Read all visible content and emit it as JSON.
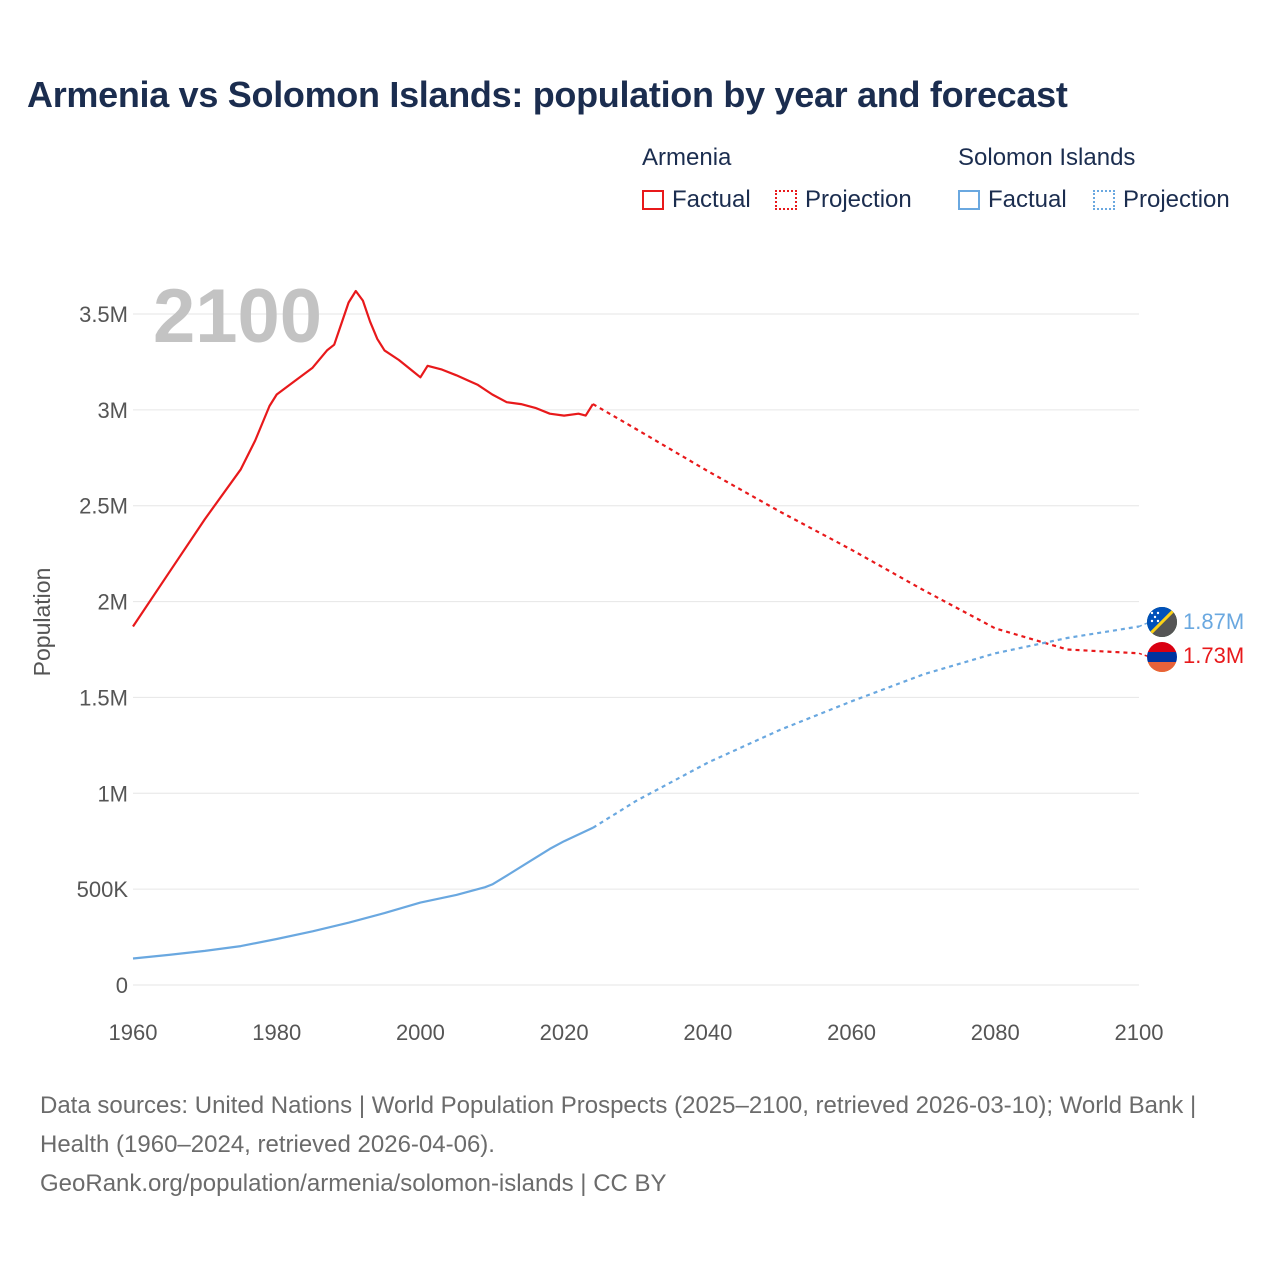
{
  "title": "Armenia vs Solomon Islands: population by year and forecast",
  "legend": {
    "groups": [
      {
        "name": "Armenia",
        "color": "#e8191b",
        "factual_label": "Factual",
        "projection_label": "Projection"
      },
      {
        "name": "Solomon Islands",
        "color": "#6aa8e0",
        "factual_label": "Factual",
        "projection_label": "Projection"
      }
    ]
  },
  "footer": {
    "line1": "Data sources: United Nations | World Population Prospects (2025–2100, retrieved 2026-03-10); World Bank | Health (1960–2024, retrieved 2026-04-06).",
    "line2": "GeoRank.org/population/armenia/solomon-islands | CC BY"
  },
  "chart_data": {
    "type": "line",
    "title": "Armenia vs Solomon Islands: population by year and forecast",
    "current_year_label": "2100",
    "xlabel": "",
    "ylabel": "Population",
    "xlim": [
      1960,
      2100
    ],
    "ylim": [
      0,
      3600000
    ],
    "x_ticks": [
      1960,
      1980,
      2000,
      2020,
      2040,
      2060,
      2080,
      2100
    ],
    "y_ticks": [
      {
        "value": 0,
        "label": "0"
      },
      {
        "value": 500000,
        "label": "500K"
      },
      {
        "value": 1000000,
        "label": "1M"
      },
      {
        "value": 1500000,
        "label": "1.5M"
      },
      {
        "value": 2000000,
        "label": "2M"
      },
      {
        "value": 2500000,
        "label": "2.5M"
      },
      {
        "value": 3000000,
        "label": "3M"
      },
      {
        "value": 3500000,
        "label": "3.5M"
      }
    ],
    "grid": true,
    "series": [
      {
        "name": "Armenia",
        "color": "#e8191b",
        "end_label": "1.73M",
        "factual": [
          [
            1960,
            1870000
          ],
          [
            1965,
            2150000
          ],
          [
            1970,
            2430000
          ],
          [
            1975,
            2690000
          ],
          [
            1977,
            2840000
          ],
          [
            1979,
            3020000
          ],
          [
            1980,
            3080000
          ],
          [
            1985,
            3220000
          ],
          [
            1987,
            3310000
          ],
          [
            1988,
            3340000
          ],
          [
            1989,
            3450000
          ],
          [
            1990,
            3560000
          ],
          [
            1991,
            3620000
          ],
          [
            1992,
            3570000
          ],
          [
            1993,
            3460000
          ],
          [
            1994,
            3370000
          ],
          [
            1995,
            3310000
          ],
          [
            1997,
            3260000
          ],
          [
            1999,
            3200000
          ],
          [
            2000,
            3170000
          ],
          [
            2001,
            3230000
          ],
          [
            2003,
            3210000
          ],
          [
            2005,
            3180000
          ],
          [
            2008,
            3130000
          ],
          [
            2010,
            3080000
          ],
          [
            2012,
            3040000
          ],
          [
            2014,
            3030000
          ],
          [
            2016,
            3010000
          ],
          [
            2018,
            2980000
          ],
          [
            2020,
            2970000
          ],
          [
            2022,
            2980000
          ],
          [
            2023,
            2970000
          ],
          [
            2024,
            3030000
          ]
        ],
        "projection": [
          [
            2024,
            3030000
          ],
          [
            2030,
            2900000
          ],
          [
            2040,
            2680000
          ],
          [
            2050,
            2470000
          ],
          [
            2060,
            2270000
          ],
          [
            2070,
            2060000
          ],
          [
            2080,
            1860000
          ],
          [
            2090,
            1750000
          ],
          [
            2100,
            1730000
          ]
        ]
      },
      {
        "name": "Solomon Islands",
        "color": "#6aa8e0",
        "end_label": "1.87M",
        "factual": [
          [
            1960,
            138000
          ],
          [
            1965,
            157000
          ],
          [
            1970,
            178000
          ],
          [
            1975,
            203000
          ],
          [
            1980,
            240000
          ],
          [
            1985,
            280000
          ],
          [
            1990,
            325000
          ],
          [
            1995,
            375000
          ],
          [
            2000,
            430000
          ],
          [
            2005,
            470000
          ],
          [
            2009,
            510000
          ],
          [
            2010,
            525000
          ],
          [
            2012,
            570000
          ],
          [
            2015,
            640000
          ],
          [
            2018,
            710000
          ],
          [
            2020,
            750000
          ],
          [
            2024,
            820000
          ]
        ],
        "projection": [
          [
            2024,
            820000
          ],
          [
            2030,
            960000
          ],
          [
            2040,
            1160000
          ],
          [
            2050,
            1330000
          ],
          [
            2060,
            1480000
          ],
          [
            2070,
            1620000
          ],
          [
            2080,
            1730000
          ],
          [
            2090,
            1810000
          ],
          [
            2100,
            1870000
          ]
        ]
      }
    ]
  }
}
